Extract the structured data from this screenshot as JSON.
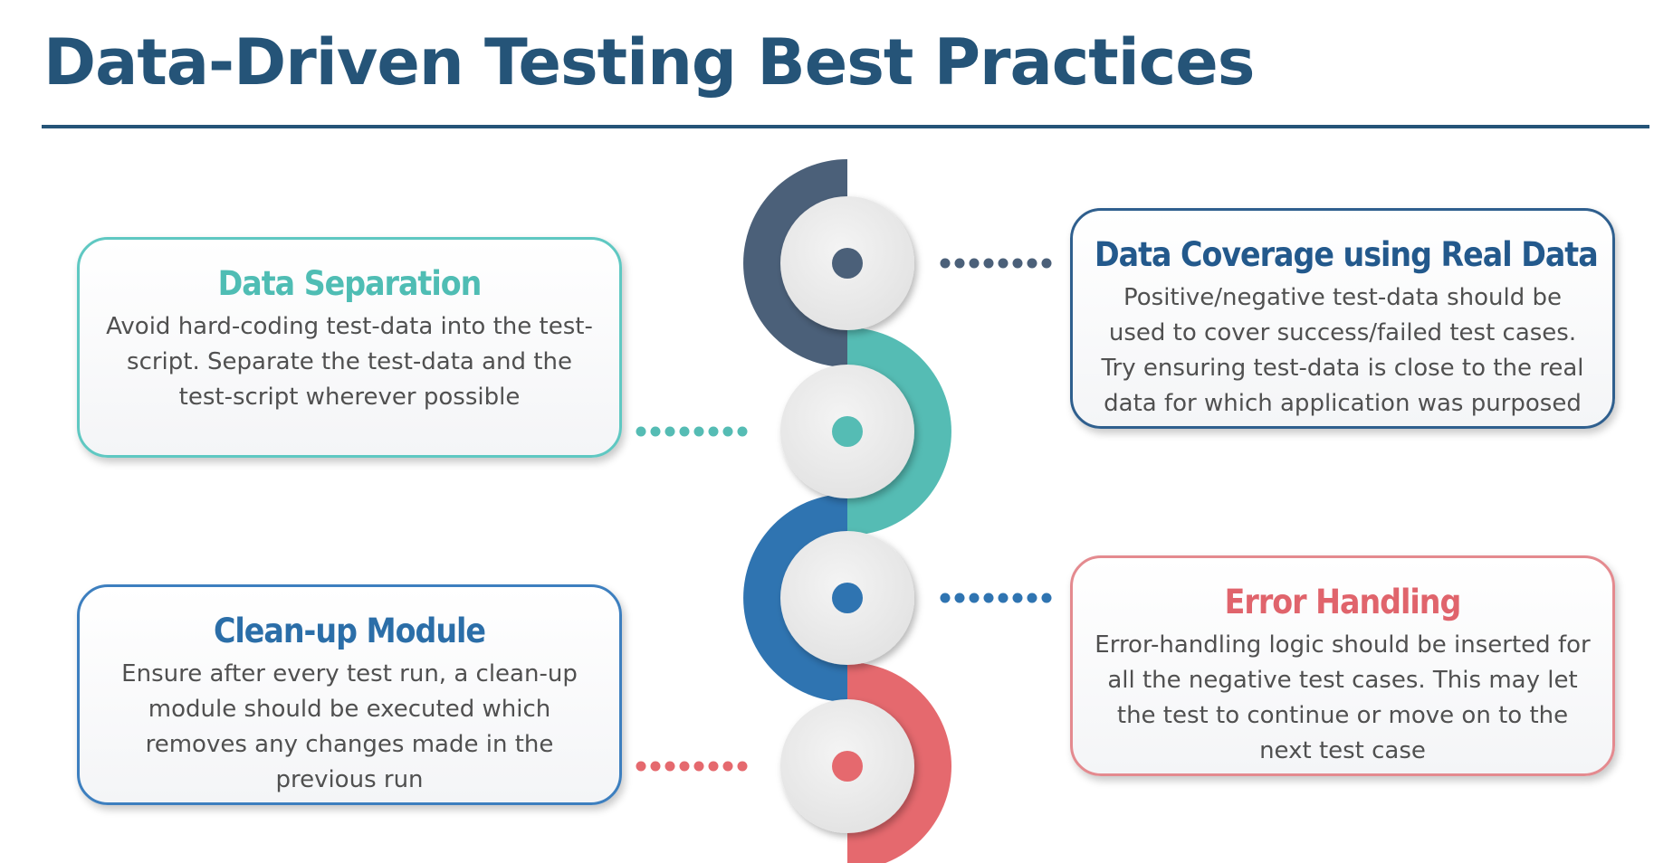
{
  "title": "Data-Driven Testing Best Practices",
  "colors": {
    "title": "#255478",
    "slate": "#4b6079",
    "teal": "#55bcb4",
    "blue": "#2f74b1",
    "coral": "#e5696e",
    "disc": "#ececec"
  },
  "practices": [
    {
      "id": "data-separation",
      "side": "left",
      "color": "#55bcb4",
      "title": "Data Separation",
      "text": "Avoid hard-coding test-data into the test-script. Separate the test-data and the test-script wherever possible"
    },
    {
      "id": "data-coverage",
      "side": "right",
      "color": "#4b6079",
      "title": "Data Coverage using Real Data",
      "text": "Positive/negative test-data should be used to cover success/failed test cases. Try ensuring test-data is close to the real data for which application was purposed"
    },
    {
      "id": "clean-up-module",
      "side": "left",
      "color": "#2f74b1",
      "title": "Clean-up Module",
      "text": "Ensure after every test run, a clean-up module should be executed which removes any changes made in the previous run"
    },
    {
      "id": "error-handling",
      "side": "right",
      "color": "#e5696e",
      "title": "Error Handling",
      "text": "Error-handling logic should be inserted for all the negative test cases. This may let the test to continue or move on to the next test case"
    }
  ]
}
